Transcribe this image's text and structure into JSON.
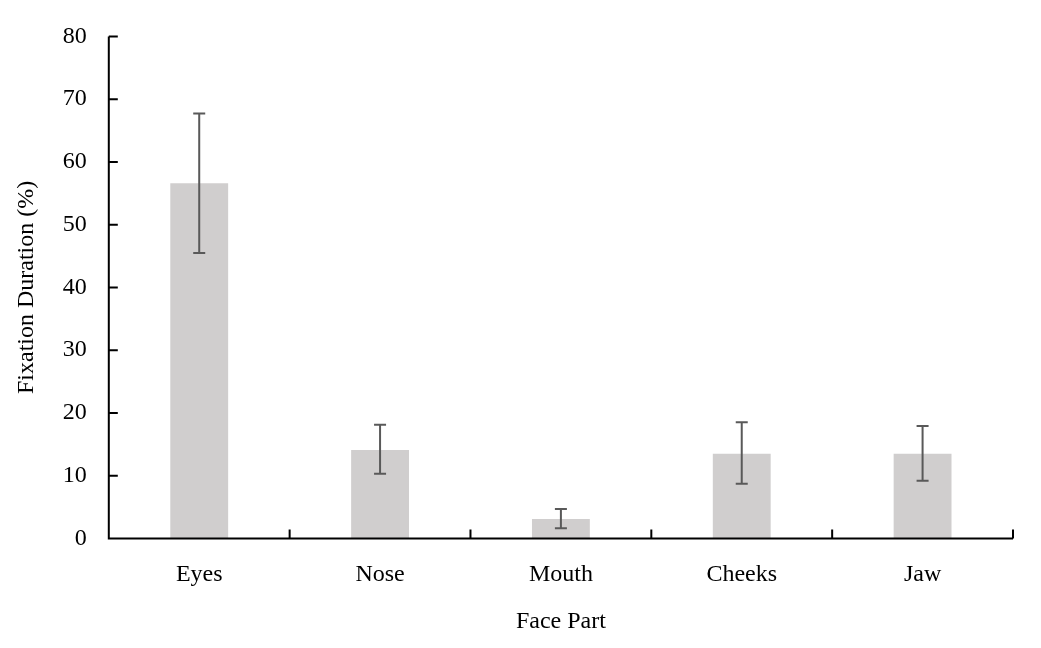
{
  "chart_data": {
    "type": "bar",
    "xlabel": "Face Part",
    "ylabel": "Fixation Duration (%)",
    "categories": [
      "Eyes",
      "Nose",
      "Mouth",
      "Cheeks",
      "Jaw"
    ],
    "values": [
      56.6,
      14.1,
      3.1,
      13.5,
      13.5
    ],
    "errors": [
      [
        45.5,
        67.7
      ],
      [
        10.3,
        18.1
      ],
      [
        1.6,
        4.7
      ],
      [
        8.7,
        18.5
      ],
      [
        9.2,
        17.9
      ]
    ],
    "color": "#d0cece",
    "ylim": [
      0,
      80
    ],
    "yticks": [
      0,
      10,
      20,
      30,
      40,
      50,
      60,
      70,
      80
    ]
  }
}
